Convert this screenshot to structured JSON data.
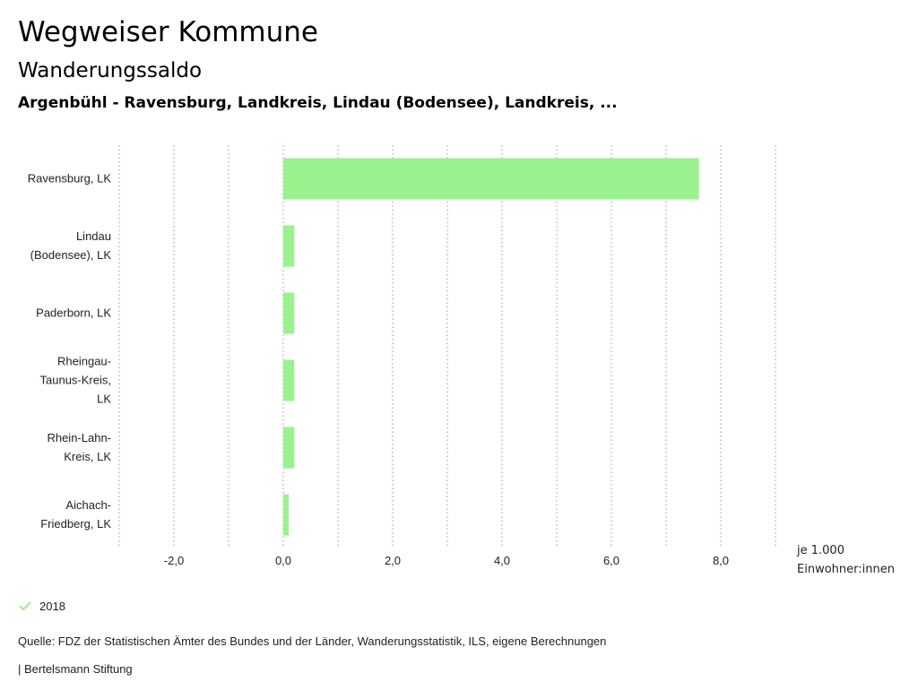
{
  "header": {
    "title": "Wegweiser Kommune",
    "subtitle": "Wanderungssaldo",
    "region": "Argenbühl - Ravensburg, Landkreis, Lindau (Bodensee), Landkreis, ..."
  },
  "chart_data": {
    "type": "bar",
    "orientation": "horizontal",
    "categories": [
      [
        "Ravensburg, LK"
      ],
      [
        "Lindau",
        "(Bodensee), LK"
      ],
      [
        "Paderborn, LK"
      ],
      [
        "Rheingau-",
        "Taunus-Kreis,",
        "LK"
      ],
      [
        "Rhein-Lahn-",
        "Kreis, LK"
      ],
      [
        "Aichach-",
        "Friedberg, LK"
      ]
    ],
    "series": [
      {
        "name": "2018",
        "color": "#99f28e",
        "values": [
          7.6,
          0.2,
          0.2,
          0.2,
          0.2,
          0.1
        ]
      }
    ],
    "xlim": [
      -3.0,
      9.0
    ],
    "xticks": [
      -2.0,
      0.0,
      2.0,
      4.0,
      6.0,
      8.0
    ],
    "xtick_labels": [
      "-2,0",
      "0,0",
      "2,0",
      "4,0",
      "6,0",
      "8,0"
    ],
    "gridlines": [
      -3,
      -2,
      -1,
      0,
      1,
      2,
      3,
      4,
      5,
      6,
      7,
      8,
      9
    ],
    "unit_label": [
      "je 1.000",
      "Einwohner:innen"
    ],
    "grid": true
  },
  "legend": {
    "label": "2018",
    "icon": "check-icon",
    "color": "#99f28e"
  },
  "footer": {
    "source": "Quelle: FDZ der Statistischen Ämter des Bundes und der Länder, Wanderungsstatistik, ILS, eigene Berechnungen",
    "brand": "| Bertelsmann Stiftung"
  }
}
